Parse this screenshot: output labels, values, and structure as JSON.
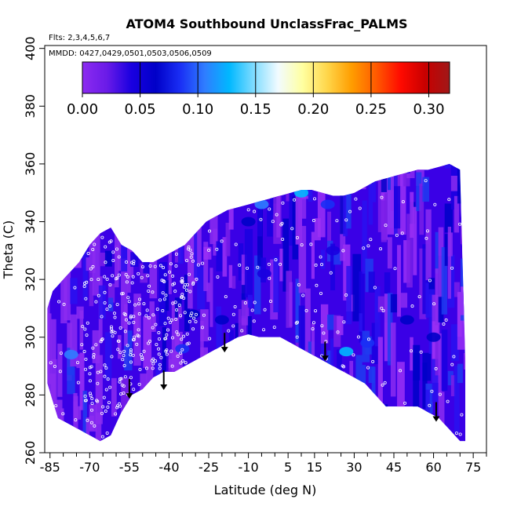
{
  "chart_data": {
    "type": "heatmap",
    "title": "ATOM4 Southbound UnclassFrac_PALMS",
    "subtitle_flights": "Flts: 2,3,4,5,6,7",
    "subtitle_dates": "MMDD: 0427,0429,0501,0503,0506,0509",
    "xlabel": "Latitude (deg N)",
    "ylabel": "Theta (C)",
    "xlim": [
      -87,
      80
    ],
    "ylim": [
      260,
      401
    ],
    "x_ticks": [
      -85,
      -70,
      -55,
      -40,
      -25,
      -10,
      5,
      15,
      30,
      45,
      60,
      75
    ],
    "x_tick_labels": [
      "-85",
      "-70",
      "-55",
      "-40",
      "-25",
      "-10",
      "5",
      "15",
      "30",
      "45",
      "60",
      "75"
    ],
    "y_ticks": [
      260,
      280,
      300,
      320,
      340,
      360,
      380,
      400
    ],
    "y_tick_labels": [
      "260",
      "280",
      "300",
      "320",
      "340",
      "360",
      "380",
      "400"
    ],
    "colorbar": {
      "min": 0.0,
      "max": 0.318,
      "ticks": [
        0.0,
        0.05,
        0.1,
        0.15,
        0.2,
        0.25,
        0.3
      ],
      "tick_labels": [
        "0.00",
        "0.05",
        "0.10",
        "0.15",
        "0.20",
        "0.25",
        "0.30"
      ],
      "colors": [
        "#8c2bf0",
        "#6a1be8",
        "#1a00e0",
        "#0000c8",
        "#1a2ff5",
        "#2f7dff",
        "#00b8ff",
        "#7fdcff",
        "#f2fbff",
        "#ffffa0",
        "#ffd64a",
        "#ff9d00",
        "#ff5a00",
        "#ff0a00",
        "#c80000",
        "#a01818"
      ]
    },
    "coverage_boundary": {
      "lat": [
        -86,
        -84,
        -82,
        -78,
        -74,
        -70,
        -66,
        -62,
        -58,
        -54,
        -50,
        -46,
        -42,
        -38,
        -34,
        -30,
        -26,
        -22,
        -18,
        -14,
        -10,
        -6,
        -2,
        2,
        6,
        10,
        14,
        18,
        22,
        26,
        30,
        34,
        38,
        42,
        46,
        50,
        54,
        58,
        62,
        66,
        70,
        72
      ],
      "top": [
        310,
        316,
        318,
        322,
        326,
        332,
        336,
        338,
        332,
        330,
        326,
        326,
        328,
        330,
        332,
        336,
        340,
        342,
        344,
        345,
        346,
        347,
        348,
        349,
        350,
        351,
        351,
        350,
        349,
        349,
        350,
        352,
        354,
        355,
        356,
        357,
        358,
        358,
        359,
        360,
        358,
        292
      ],
      "bottom": [
        284,
        278,
        272,
        270,
        268,
        266,
        264,
        266,
        274,
        280,
        282,
        286,
        288,
        288,
        290,
        292,
        294,
        296,
        298,
        300,
        301,
        300,
        300,
        300,
        298,
        296,
        294,
        292,
        290,
        288,
        286,
        284,
        280,
        276,
        276,
        276,
        276,
        274,
        272,
        268,
        264,
        264
      ]
    },
    "anomaly_patches": [
      {
        "lat": -77,
        "theta": 294,
        "value": 0.11
      },
      {
        "lat": -35,
        "theta": 296,
        "value": 0.09
      },
      {
        "lat": -31,
        "theta": 308,
        "value": 0.07
      },
      {
        "lat": -20,
        "theta": 306,
        "value": 0.06
      },
      {
        "lat": -10,
        "theta": 340,
        "value": 0.07
      },
      {
        "lat": -5,
        "theta": 346,
        "value": 0.11
      },
      {
        "lat": -13,
        "theta": 347,
        "value": 0.16
      },
      {
        "lat": 10,
        "theta": 350,
        "value": 0.12
      },
      {
        "lat": 20,
        "theta": 346,
        "value": 0.09
      },
      {
        "lat": 27,
        "theta": 295,
        "value": 0.12
      },
      {
        "lat": 35,
        "theta": 298,
        "value": 0.09
      },
      {
        "lat": 22,
        "theta": 330,
        "value": 0.05
      },
      {
        "lat": 50,
        "theta": 306,
        "value": 0.06
      },
      {
        "lat": 60,
        "theta": 300,
        "value": 0.07
      },
      {
        "lat": -4,
        "theta": 322,
        "value": 0.05
      }
    ],
    "arrows": [
      {
        "lat": -55,
        "theta": 279
      },
      {
        "lat": -42,
        "theta": 282
      },
      {
        "lat": -19,
        "theta": 295
      },
      {
        "lat": 19,
        "theta": 292
      },
      {
        "lat": 61,
        "theta": 271
      }
    ],
    "sample_points": {
      "count": 420,
      "seed": 7,
      "lat_range": [
        -85,
        72
      ],
      "dense_lat_range": [
        -72,
        -30
      ]
    }
  }
}
